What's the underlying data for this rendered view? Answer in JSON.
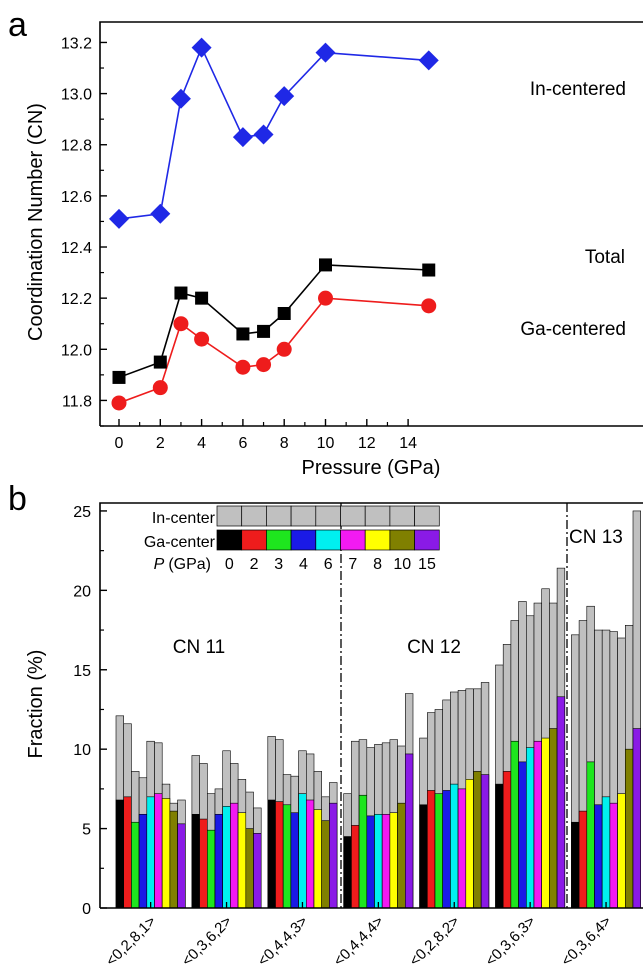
{
  "chart_data": [
    {
      "panel_label": "a",
      "type": "line",
      "xlabel": "Pressure (GPa)",
      "ylabel": "Coordination Number (CN)",
      "xlim": [
        -0.5,
        15
      ],
      "ylim": [
        11.7,
        13.28
      ],
      "xticks": [
        "0",
        "2",
        "4",
        "6",
        "8",
        "10",
        "12",
        "14"
      ],
      "yticks": [
        "11.8",
        "12.0",
        "12.2",
        "12.4",
        "12.6",
        "12.8",
        "13.0",
        "13.2"
      ],
      "grid": false,
      "series": [
        {
          "name": "In-centered",
          "color": "#1f28e6",
          "marker": "diamond",
          "x": [
            0,
            2,
            3,
            4,
            6,
            7,
            8,
            10,
            15
          ],
          "y": [
            12.51,
            12.53,
            12.98,
            13.18,
            12.83,
            12.84,
            12.99,
            13.16,
            13.13
          ]
        },
        {
          "name": "Total",
          "color": "#000000",
          "marker": "square",
          "x": [
            0,
            2,
            3,
            4,
            6,
            7,
            8,
            10,
            15
          ],
          "y": [
            11.89,
            11.95,
            12.22,
            12.2,
            12.06,
            12.07,
            12.14,
            12.33,
            12.31
          ]
        },
        {
          "name": "Ga-centered",
          "color": "#ee1c1c",
          "marker": "circle",
          "x": [
            0,
            2,
            3,
            4,
            6,
            7,
            8,
            10,
            15
          ],
          "y": [
            11.79,
            11.85,
            12.1,
            12.04,
            11.93,
            11.94,
            12.0,
            12.2,
            12.17
          ]
        }
      ]
    },
    {
      "panel_label": "b",
      "type": "bar",
      "xlabel": "",
      "ylabel": "Fraction (%)",
      "ylim": [
        0,
        25.5
      ],
      "yticks": [
        "0",
        "5",
        "10",
        "15",
        "20",
        "25"
      ],
      "grid": false,
      "categories": [
        "<0,2,8,1>",
        "<0,3,6,2>",
        "<0,4,4,3>",
        "<0,4,4,4>",
        "<0,2,8,2>",
        "<0,3,6,3>",
        "<0,3,6,4>"
      ],
      "pressures": [
        "0",
        "2",
        "3",
        "4",
        "6",
        "7",
        "8",
        "10",
        "15"
      ],
      "pressure_colors": [
        "#000000",
        "#ee1c1c",
        "#1ee61e",
        "#1a1ae6",
        "#00f0f0",
        "#f21af2",
        "#ffff00",
        "#808000",
        "#8a1ae6"
      ],
      "in_center_color": "#c0c0c0",
      "group_labels": [
        "CN 11",
        "CN 12",
        "CN 13"
      ],
      "legend": {
        "in_label": "In-center",
        "ga_label": "Ga-center",
        "p_label_italic": "P",
        "p_label_unit": "(GPa)"
      },
      "series": [
        {
          "name": "In-center",
          "values": [
            [
              12.1,
              11.6,
              8.6,
              8.2,
              10.5,
              10.4,
              7.8,
              6.6,
              6.8
            ],
            [
              9.6,
              9.1,
              7.2,
              7.5,
              9.9,
              9.1,
              8.1,
              7.3,
              6.3
            ],
            [
              10.8,
              10.6,
              8.4,
              8.3,
              9.9,
              9.7,
              8.6,
              7.0,
              7.9
            ],
            [
              7.2,
              10.5,
              10.6,
              10.1,
              10.3,
              10.4,
              10.6,
              10.2,
              13.5
            ],
            [
              10.7,
              12.3,
              12.5,
              13.1,
              13.6,
              13.7,
              13.8,
              13.8,
              14.2
            ],
            [
              15.3,
              16.6,
              18.1,
              19.3,
              18.4,
              19.2,
              20.1,
              19.2,
              21.4
            ],
            [
              17.2,
              18.1,
              19.0,
              17.5,
              17.5,
              17.4,
              17.0,
              17.8,
              25.0
            ]
          ]
        },
        {
          "name": "Ga-center",
          "values": [
            [
              6.8,
              7.0,
              5.4,
              5.9,
              7.0,
              7.2,
              6.9,
              6.1,
              5.3
            ],
            [
              5.9,
              5.6,
              4.9,
              5.9,
              6.4,
              6.6,
              6.0,
              5.0,
              4.7
            ],
            [
              6.8,
              6.7,
              6.5,
              6.0,
              7.2,
              6.8,
              6.2,
              5.5,
              6.6
            ],
            [
              4.5,
              5.2,
              7.1,
              5.8,
              5.9,
              5.9,
              6.0,
              6.6,
              9.7
            ],
            [
              6.5,
              7.4,
              7.2,
              7.4,
              7.8,
              7.5,
              8.1,
              8.6,
              8.4
            ],
            [
              7.8,
              8.6,
              10.5,
              9.2,
              10.1,
              10.5,
              10.7,
              11.3,
              13.3
            ],
            [
              5.4,
              6.1,
              9.2,
              6.5,
              7.0,
              6.6,
              7.2,
              10.0,
              11.3
            ]
          ]
        }
      ]
    }
  ]
}
